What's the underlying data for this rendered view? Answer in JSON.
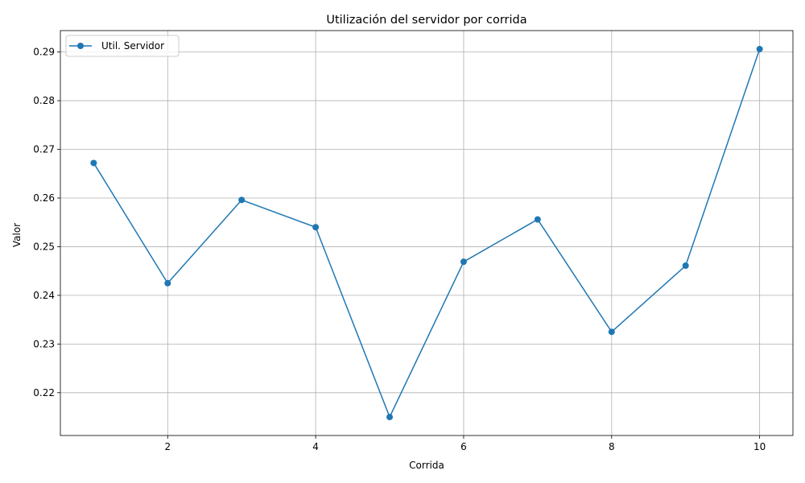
{
  "chart_data": {
    "type": "line",
    "title": "Utilización del servidor por corrida",
    "xlabel": "Corrida",
    "ylabel": "Valor",
    "x": [
      1,
      2,
      3,
      4,
      5,
      6,
      7,
      8,
      9,
      10
    ],
    "series": [
      {
        "name": "Util. Servidor",
        "values": [
          0.2672,
          0.2425,
          0.2596,
          0.254,
          0.215,
          0.2469,
          0.2556,
          0.2325,
          0.2461,
          0.2906
        ],
        "color": "#1f77b4",
        "marker": "circle"
      }
    ],
    "xlim": [
      0.55,
      10.45
    ],
    "ylim": [
      0.2112,
      0.2944
    ],
    "xticks": [
      2,
      4,
      6,
      8,
      10
    ],
    "xtick_labels": [
      "2",
      "4",
      "6",
      "8",
      "10"
    ],
    "yticks": [
      0.22,
      0.23,
      0.24,
      0.25,
      0.26,
      0.27,
      0.28,
      0.29
    ],
    "ytick_labels": [
      "0.22",
      "0.23",
      "0.24",
      "0.25",
      "0.26",
      "0.27",
      "0.28",
      "0.29"
    ],
    "grid": true,
    "legend_position": "upper-left"
  }
}
